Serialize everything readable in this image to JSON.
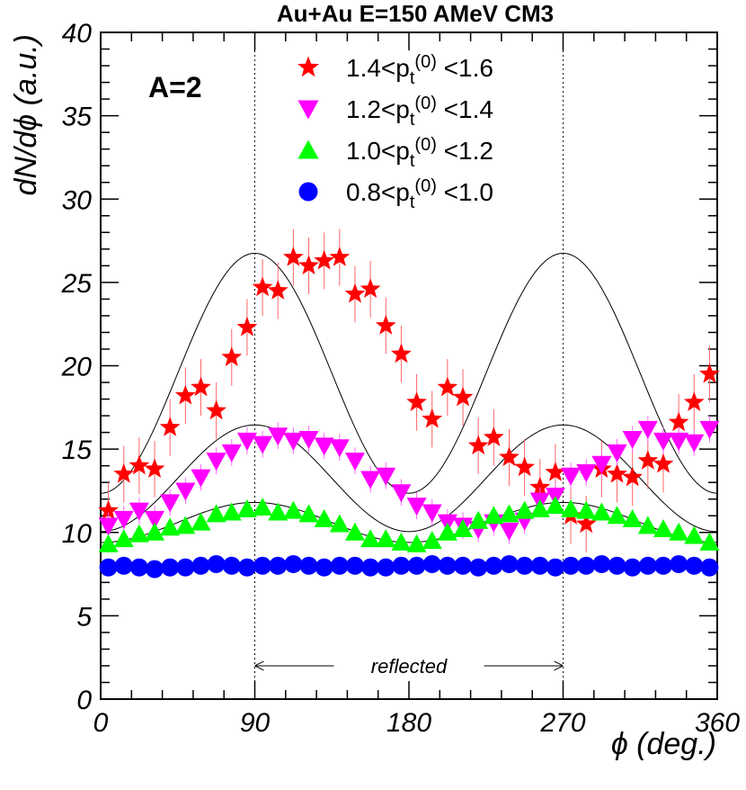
{
  "chart_data": {
    "type": "scatter",
    "title": "Au+Au E=150 AMeV CM3",
    "panel_label": "A=2",
    "xlabel": "ϕ (deg.)",
    "ylabel": "dN/dϕ (a.u.)",
    "xlim": [
      0,
      360
    ],
    "ylim": [
      0,
      40
    ],
    "xticks": [
      0,
      90,
      180,
      270,
      360
    ],
    "yticks": [
      0,
      5,
      10,
      15,
      20,
      25,
      30,
      35,
      40
    ],
    "x": [
      4.5,
      13.5,
      22.5,
      31.5,
      40.5,
      49.5,
      58.5,
      67.5,
      76.5,
      85.5,
      94.5,
      103.5,
      112.5,
      121.5,
      130.5,
      139.5,
      148.5,
      157.5,
      166.5,
      175.5,
      184.5,
      193.5,
      202.5,
      211.5,
      220.5,
      229.5,
      238.5,
      247.5,
      256.5,
      265.5,
      274.5,
      283.5,
      292.5,
      301.5,
      310.5,
      319.5,
      328.5,
      337.5,
      346.5,
      355.5
    ],
    "vertical_lines_x": [
      90,
      270
    ],
    "annotation": {
      "text": "reflected",
      "from_x": 90,
      "to_x": 270,
      "y": 2
    },
    "grid": false,
    "legend_position": "top-center",
    "series": [
      {
        "name": "1.4<pt(0) <1.6",
        "legend_main": "1.4<p",
        "legend_sub": "t",
        "legend_sup": "(0)",
        "legend_tail": " <1.6",
        "marker": "star",
        "color": "#ff0000",
        "errorbar_color": "#ff6666",
        "values": [
          11.3,
          13.5,
          14.0,
          13.8,
          16.3,
          18.2,
          18.7,
          17.3,
          20.5,
          22.3,
          24.7,
          24.5,
          26.5,
          26.0,
          26.3,
          26.5,
          24.3,
          24.6,
          22.4,
          20.7,
          17.8,
          16.8,
          18.7,
          18.1,
          15.2,
          15.7,
          14.5,
          13.9,
          12.7,
          13.6,
          11.0,
          10.5,
          13.8,
          13.5,
          13.3,
          14.3,
          14.1,
          16.6,
          17.8,
          19.5
        ],
        "error": 1.7,
        "fit": {
          "mean": 19.55,
          "amplitude": 7.2
        }
      },
      {
        "name": "1.2<pt(0) <1.4",
        "legend_main": "1.2<p",
        "legend_sub": "t",
        "legend_sup": "(0)",
        "legend_tail": " <1.4",
        "marker": "triangle-down",
        "color": "#ff00ff",
        "errorbar_color": "#ff66ff",
        "values": [
          10.4,
          10.8,
          11.3,
          10.8,
          11.8,
          12.5,
          13.3,
          14.3,
          14.8,
          15.5,
          15.3,
          15.8,
          15.5,
          15.6,
          15.2,
          15.1,
          14.3,
          13.2,
          13.4,
          12.4,
          11.6,
          11.2,
          10.6,
          10.4,
          10.2,
          10.6,
          10.1,
          10.7,
          11.9,
          12.2,
          13.4,
          13.6,
          14.1,
          14.8,
          15.6,
          16.2,
          15.5,
          15.5,
          15.4,
          16.2
        ],
        "error": 0.8,
        "fit": {
          "mean": 13.25,
          "amplitude": 3.2
        }
      },
      {
        "name": "1.0<pt(0) <1.2",
        "legend_main": "1.0<p",
        "legend_sub": "t",
        "legend_sup": "(0)",
        "legend_tail": " <1.2",
        "marker": "triangle-up",
        "color": "#00ff00",
        "errorbar_color": "#33cc33",
        "values": [
          9.3,
          9.6,
          9.9,
          10.0,
          10.3,
          10.4,
          10.6,
          11.1,
          11.2,
          11.4,
          11.5,
          11.2,
          11.3,
          11.1,
          10.8,
          10.5,
          10.0,
          9.6,
          9.6,
          9.4,
          9.3,
          9.5,
          10.0,
          10.2,
          10.7,
          11.0,
          11.1,
          11.3,
          11.4,
          11.6,
          11.4,
          11.3,
          11.2,
          11.0,
          10.8,
          10.4,
          10.2,
          10.0,
          9.8,
          9.4
        ],
        "error": 0.4,
        "fit": {
          "mean": 10.6,
          "amplitude": 1.2
        }
      },
      {
        "name": "0.8<pt(0) <1.0",
        "legend_main": "0.8<p",
        "legend_sub": "t",
        "legend_sup": "(0)",
        "legend_tail": " <1.0",
        "marker": "circle",
        "color": "#0000ff",
        "errorbar_color": "#3333ff",
        "values": [
          7.9,
          8.0,
          7.9,
          7.8,
          7.9,
          7.9,
          8.0,
          8.1,
          8.0,
          7.9,
          8.0,
          8.0,
          8.1,
          8.0,
          7.9,
          8.0,
          8.0,
          7.9,
          7.9,
          8.0,
          8.0,
          8.1,
          8.0,
          8.0,
          7.9,
          8.0,
          8.1,
          8.0,
          8.0,
          7.9,
          8.0,
          8.0,
          8.1,
          8.0,
          7.9,
          8.0,
          8.0,
          8.1,
          8.0,
          7.9
        ],
        "error": 0.2,
        "fit": {
          "mean": 8.0,
          "amplitude": 0.0
        }
      }
    ]
  }
}
